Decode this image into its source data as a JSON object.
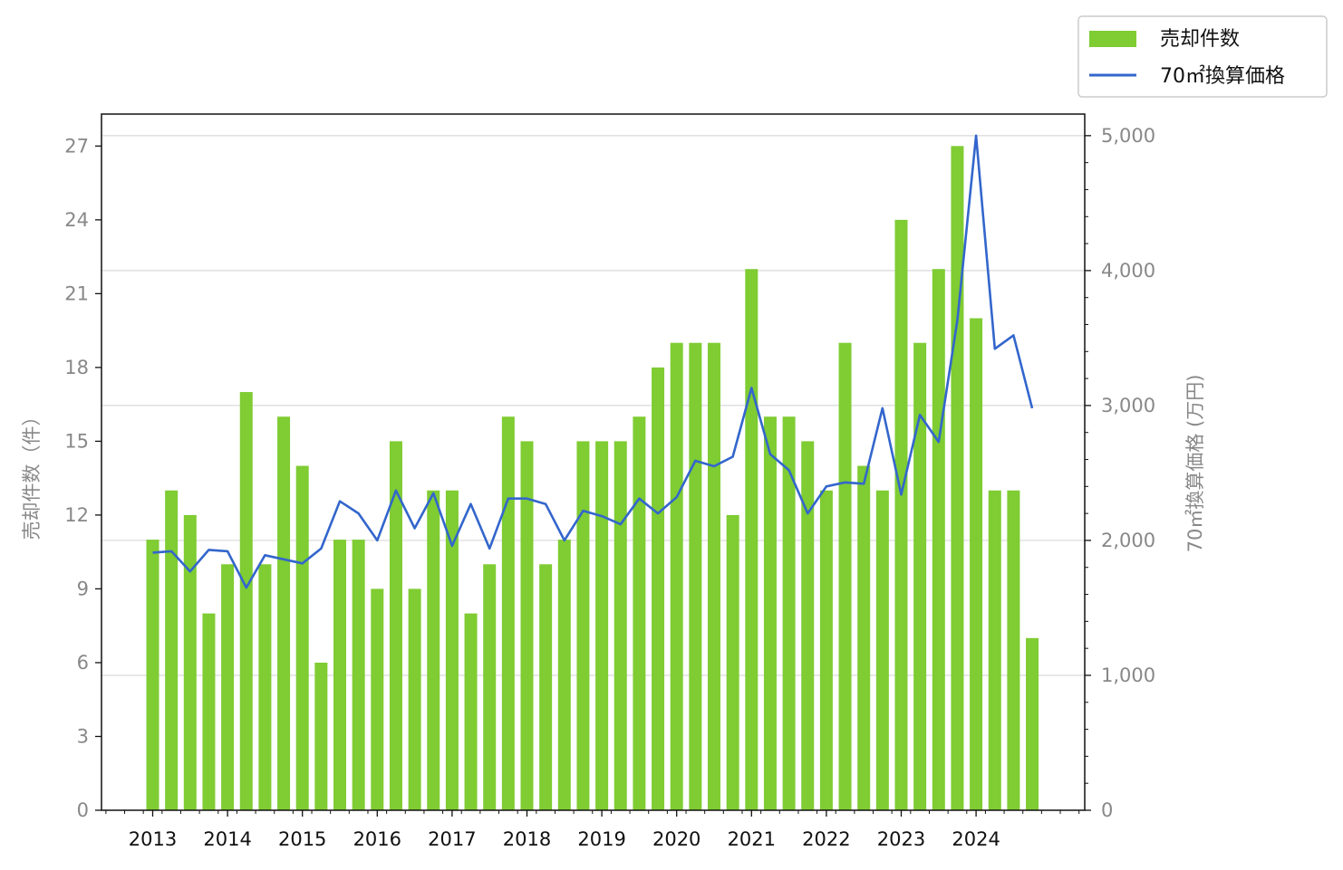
{
  "chart_data": {
    "type": "bar",
    "x_axis": {
      "tick_labels": [
        "2013",
        "2014",
        "2015",
        "2016",
        "2017",
        "2018",
        "2019",
        "2020",
        "2021",
        "2022",
        "2023",
        "2024"
      ],
      "minor_ticks_per_year": 4
    },
    "y_left": {
      "label": "売却件数（件）",
      "ticks": [
        0,
        3,
        6,
        9,
        12,
        15,
        18,
        21,
        24,
        27
      ],
      "tick_labels": [
        "0",
        "3",
        "6",
        "9",
        "12",
        "15",
        "18",
        "21",
        "24",
        "27"
      ],
      "ylim": [
        0,
        28.3
      ]
    },
    "y_right": {
      "label": "70㎡換算価格 (万円)",
      "ticks": [
        0,
        1000,
        2000,
        3000,
        4000,
        5000
      ],
      "tick_labels": [
        "0",
        "1,000",
        "2,000",
        "3,000",
        "4,000",
        "5,000"
      ],
      "ylim": [
        0,
        5160
      ]
    },
    "grid": "horizontal (right axis ticks)",
    "legend": {
      "placement": "top-right outside",
      "entries": [
        "売却件数",
        "70㎡換算価格"
      ]
    },
    "colors": {
      "bars": "#7fcc33",
      "line": "#3366cc",
      "grid": "#d9d9d9"
    },
    "series": [
      {
        "name": "売却件数",
        "type": "bar",
        "axis": "left",
        "values": [
          11,
          13,
          12,
          8,
          10,
          17,
          10,
          16,
          14,
          6,
          11,
          11,
          9,
          15,
          9,
          13,
          13,
          8,
          10,
          16,
          15,
          10,
          11,
          15,
          15,
          15,
          16,
          18,
          19,
          19,
          19,
          12,
          22,
          16,
          16,
          15,
          13,
          19,
          14,
          13,
          24,
          19,
          22,
          27,
          20,
          13,
          13,
          7
        ]
      },
      {
        "name": "70㎡換算価格",
        "type": "line",
        "axis": "right",
        "values": [
          1910,
          1920,
          1770,
          1930,
          1920,
          1650,
          1890,
          1860,
          1830,
          1940,
          2290,
          2200,
          2000,
          2370,
          2090,
          2350,
          1960,
          2270,
          1940,
          2310,
          2310,
          2270,
          2000,
          2220,
          2180,
          2120,
          2310,
          2200,
          2320,
          2590,
          2550,
          2620,
          3130,
          2640,
          2520,
          2200,
          2400,
          2430,
          2420,
          2980,
          2340,
          2930,
          2730,
          3630,
          5000,
          3420,
          3520,
          2980
        ]
      }
    ]
  }
}
